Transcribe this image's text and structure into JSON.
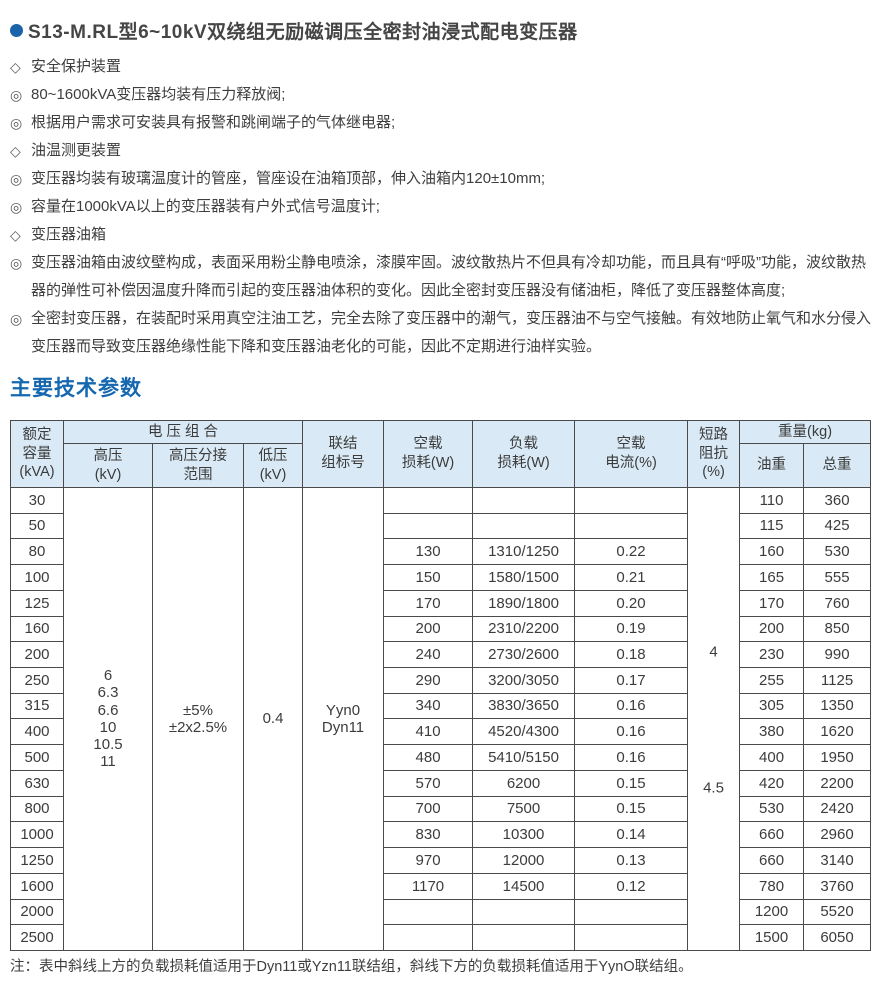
{
  "page": {
    "title": "S13-M.RL型6~10kV双绕组无励磁调压全密封油浸式配电变压器",
    "section_title": "主要技术参数",
    "note": "注：表中斜线上方的负载损耗值适用于Dyn11或Yzn11联结组，斜线下方的负载损耗值适用于YynO联结组。"
  },
  "colors": {
    "accent_blue": "#1b64aa",
    "heading_blue": "#1567b0",
    "table_header_bg": "#d9eaf6",
    "table_border": "#4a4a4a",
    "body_text": "#3e3e3e"
  },
  "features": [
    {
      "marker": "◇",
      "text": "安全保护装置"
    },
    {
      "marker": "◎",
      "text": "80~1600kVA变压器均装有压力释放阀;"
    },
    {
      "marker": "◎",
      "text": "根据用户需求可安装具有报警和跳闸端子的气体继电器;"
    },
    {
      "marker": "◇",
      "text": "油温测更装置"
    },
    {
      "marker": "◎",
      "text": "变压器均装有玻璃温度计的管座，管座设在油箱顶部，伸入油箱内120±10mm;"
    },
    {
      "marker": "◎",
      "text": "容量在1000kVA以上的变压器装有户外式信号温度计;"
    },
    {
      "marker": "◇",
      "text": "变压器油箱"
    },
    {
      "marker": "◎",
      "text": "变压器油箱由波纹壁构成，表面采用粉尘静电喷涂，漆膜牢固。波纹散热片不但具有冷却功能，而且具有“呼吸”功能，波纹散热器的弹性可补偿因温度升降而引起的变压器油体积的变化。因此全密封变压器没有储油柜，降低了变压器整体高度;"
    },
    {
      "marker": "◎",
      "text": "全密封变压器，在装配时采用真空注油工艺，完全去除了变压器中的潮气，变压器油不与空气接触。有效地防止氧气和水分侵入变压器而导致变压器绝缘性能下降和变压器油老化的可能，因此不定期进行油样实验。"
    }
  ],
  "table": {
    "header": {
      "capacity": "额定\n容量\n(kVA)",
      "voltage_group": "电 压 组 合",
      "hv": "高压\n(kV)",
      "tap": "高压分接\n范围",
      "lv": "低压\n(kV)",
      "vector": "联结\n组标号",
      "no_load_loss": "空载\n损耗(W)",
      "load_loss": "负载\n损耗(W)",
      "no_load_current": "空载\n电流(%)",
      "impedance": "短路\n阻抗(%)",
      "weight": "重量(kg)",
      "oil": "油重",
      "total": "总重"
    },
    "merged": {
      "hv_values": "6\n6.3\n6.6\n10\n10.5\n11",
      "tap_values": "±5%\n±2x2.5%",
      "lv_value": "0.4",
      "vector_values": "Yyn0\nDyn11",
      "impedance_top": "4",
      "impedance_bottom": "4.5"
    },
    "rows": [
      [
        "30",
        "",
        "",
        "",
        "110",
        "360"
      ],
      [
        "50",
        "",
        "",
        "",
        "115",
        "425"
      ],
      [
        "80",
        "130",
        "1310/1250",
        "0.22",
        "160",
        "530"
      ],
      [
        "100",
        "150",
        "1580/1500",
        "0.21",
        "165",
        "555"
      ],
      [
        "125",
        "170",
        "1890/1800",
        "0.20",
        "170",
        "760"
      ],
      [
        "160",
        "200",
        "2310/2200",
        "0.19",
        "200",
        "850"
      ],
      [
        "200",
        "240",
        "2730/2600",
        "0.18",
        "230",
        "990"
      ],
      [
        "250",
        "290",
        "3200/3050",
        "0.17",
        "255",
        "1125"
      ],
      [
        "315",
        "340",
        "3830/3650",
        "0.16",
        "305",
        "1350"
      ],
      [
        "400",
        "410",
        "4520/4300",
        "0.16",
        "380",
        "1620"
      ],
      [
        "500",
        "480",
        "5410/5150",
        "0.16",
        "400",
        "1950"
      ],
      [
        "630",
        "570",
        "6200",
        "0.15",
        "420",
        "2200"
      ],
      [
        "800",
        "700",
        "7500",
        "0.15",
        "530",
        "2420"
      ],
      [
        "1000",
        "830",
        "10300",
        "0.14",
        "660",
        "2960"
      ],
      [
        "1250",
        "970",
        "12000",
        "0.13",
        "660",
        "3140"
      ],
      [
        "1600",
        "1170",
        "14500",
        "0.12",
        "780",
        "3760"
      ],
      [
        "2000",
        "",
        "",
        "",
        "1200",
        "5520"
      ],
      [
        "2500",
        "",
        "",
        "",
        "1500",
        "6050"
      ]
    ]
  }
}
